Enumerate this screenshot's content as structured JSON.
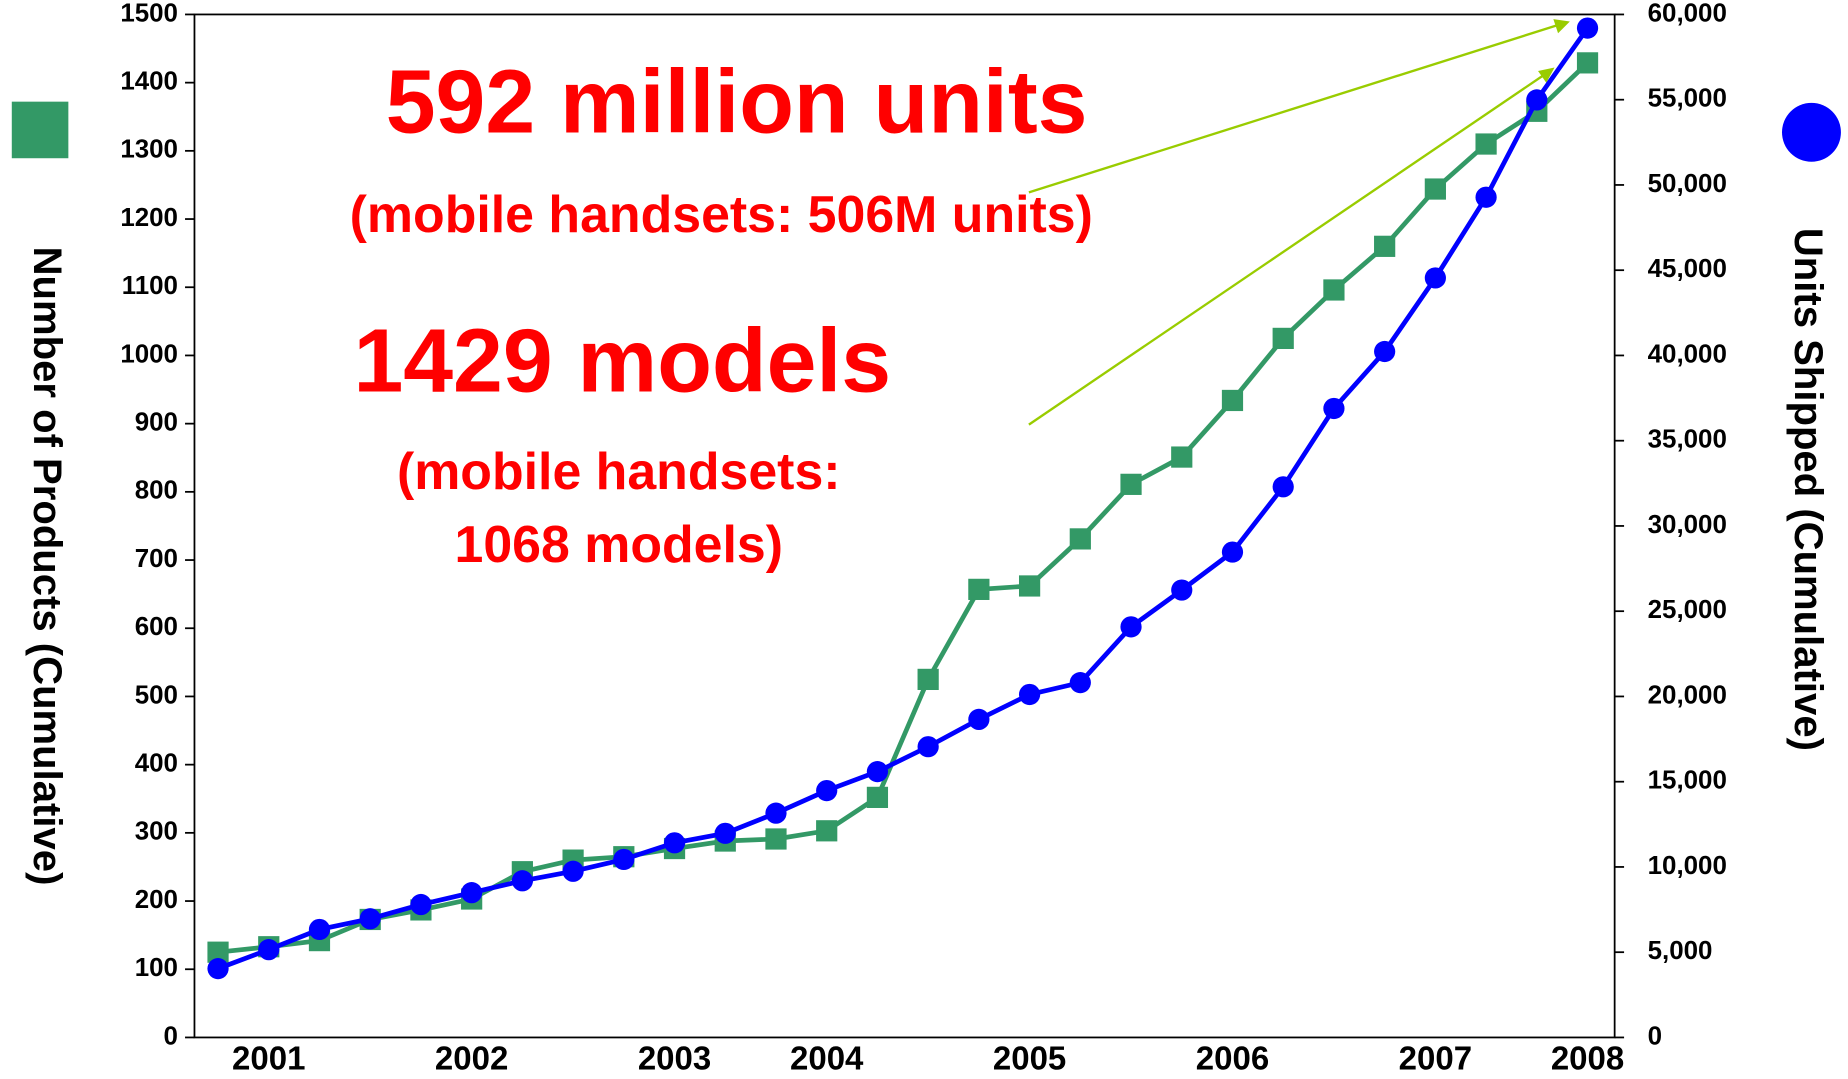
{
  "chart_data": {
    "type": "line",
    "y_label": "Number of Products (Cumulative)",
    "y2_label": "Units Shipped (Cumulative)",
    "categories": [
      null,
      "2001",
      null,
      null,
      null,
      "2002",
      null,
      null,
      null,
      "2003",
      null,
      null,
      "2004",
      null,
      null,
      null,
      "2005",
      null,
      null,
      null,
      "2006",
      null,
      null,
      null,
      "2007",
      null,
      null,
      "2008"
    ],
    "series": [
      {
        "name": "Number of Products",
        "color": "#339966",
        "marker": "square",
        "values": [
          125,
          133,
          142,
          173,
          187,
          203,
          243,
          260,
          265,
          277,
          288,
          291,
          303,
          352,
          525,
          657,
          662,
          731,
          811,
          851,
          934,
          1025,
          1096,
          1160,
          1244,
          1310,
          1358,
          1429
        ]
      },
      {
        "name": "Units Shipped",
        "color": "#0000ff",
        "marker": "circle",
        "axis": "y2",
        "values": [
          4037,
          5150,
          6334,
          6960,
          7795,
          8492,
          9188,
          9745,
          10440,
          11415,
          11972,
          13155,
          14478,
          15591,
          17053,
          18654,
          20115,
          20811,
          24083,
          26240,
          28468,
          32296,
          36890,
          40231,
          44547,
          49280,
          54987,
          59200
        ]
      }
    ],
    "ylim": [
      0,
      1500
    ],
    "yticks": [
      0,
      100,
      200,
      300,
      400,
      500,
      600,
      700,
      800,
      900,
      1000,
      1100,
      1200,
      1300,
      1400,
      1500
    ],
    "y2lim": [
      0,
      60000
    ],
    "y2ticks": [
      0,
      {
        "value": 5000,
        "label": "5,000"
      },
      {
        "value": 10000,
        "label": "10,000"
      },
      {
        "value": 15000,
        "label": "15,000"
      },
      {
        "value": 20000,
        "label": "20,000"
      },
      {
        "value": 25000,
        "label": "25,000"
      },
      {
        "value": 30000,
        "label": "30,000"
      },
      {
        "value": 35000,
        "label": "35,000"
      },
      {
        "value": 40000,
        "label": "40,000"
      },
      {
        "value": 45000,
        "label": "45,000"
      },
      {
        "value": 50000,
        "label": "50,000"
      },
      {
        "value": 55000,
        "label": "55,000"
      },
      {
        "value": 60000,
        "label": "60,000"
      }
    ],
    "annotations": [
      "592 million units",
      "(mobile handsets: 506M units)",
      "1429 models",
      "(mobile handsets:",
      "1068 models)"
    ]
  }
}
